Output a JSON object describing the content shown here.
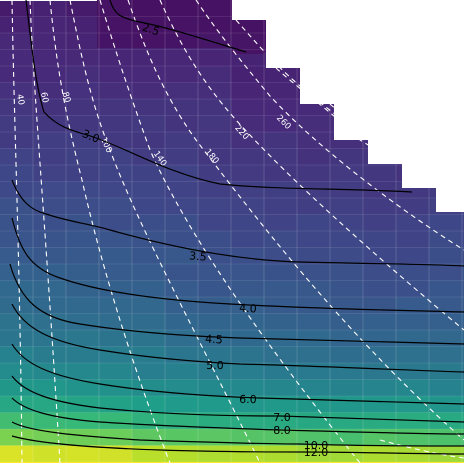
{
  "chart_data": {
    "type": "heatmap",
    "title": "",
    "xlabel": "",
    "ylabel": "",
    "grid": true,
    "colormap": "viridis",
    "color_stops": [
      "#440154",
      "#482878",
      "#3e4989",
      "#31688e",
      "#26828e",
      "#1f9e89",
      "#35b779",
      "#6ece58",
      "#b5de2b",
      "#fde725"
    ],
    "heatmap_note": "Field of values increasing from ~2.3 (top) to ~12.5 (bottom); upper-right triangle has no data (white).",
    "solid_contours": [
      {
        "level": 2.5,
        "label": "2.5"
      },
      {
        "level": 3.0,
        "label": "3.0"
      },
      {
        "level": 3.5,
        "label": "3.5"
      },
      {
        "level": 4.0,
        "label": "4.0"
      },
      {
        "level": 4.5,
        "label": "4.5"
      },
      {
        "level": 5.0,
        "label": "5.0"
      },
      {
        "level": 6.0,
        "label": "6.0"
      },
      {
        "level": 7.0,
        "label": "7.0"
      },
      {
        "level": 8.0,
        "label": "8.0"
      },
      {
        "level": 10.0,
        "label": "10.0"
      },
      {
        "level": 12.0,
        "label": "12.0"
      }
    ],
    "dashed_contours": [
      {
        "level": 40,
        "label": "40"
      },
      {
        "level": 60,
        "label": "60"
      },
      {
        "level": 80,
        "label": "80"
      },
      {
        "level": 100,
        "label": "100"
      },
      {
        "level": 140,
        "label": "140"
      },
      {
        "level": 180,
        "label": "180"
      },
      {
        "level": 220,
        "label": "220"
      },
      {
        "level": 260,
        "label": "260"
      },
      {
        "level": 300,
        "label": ""
      },
      {
        "level": 340,
        "label": ""
      },
      {
        "level": 380,
        "label": ""
      },
      {
        "level": 420,
        "label": ""
      }
    ],
    "colors": {
      "solid_contour": "#000000",
      "dashed_contour": "#ffffff",
      "missing": "#ffffff"
    }
  }
}
